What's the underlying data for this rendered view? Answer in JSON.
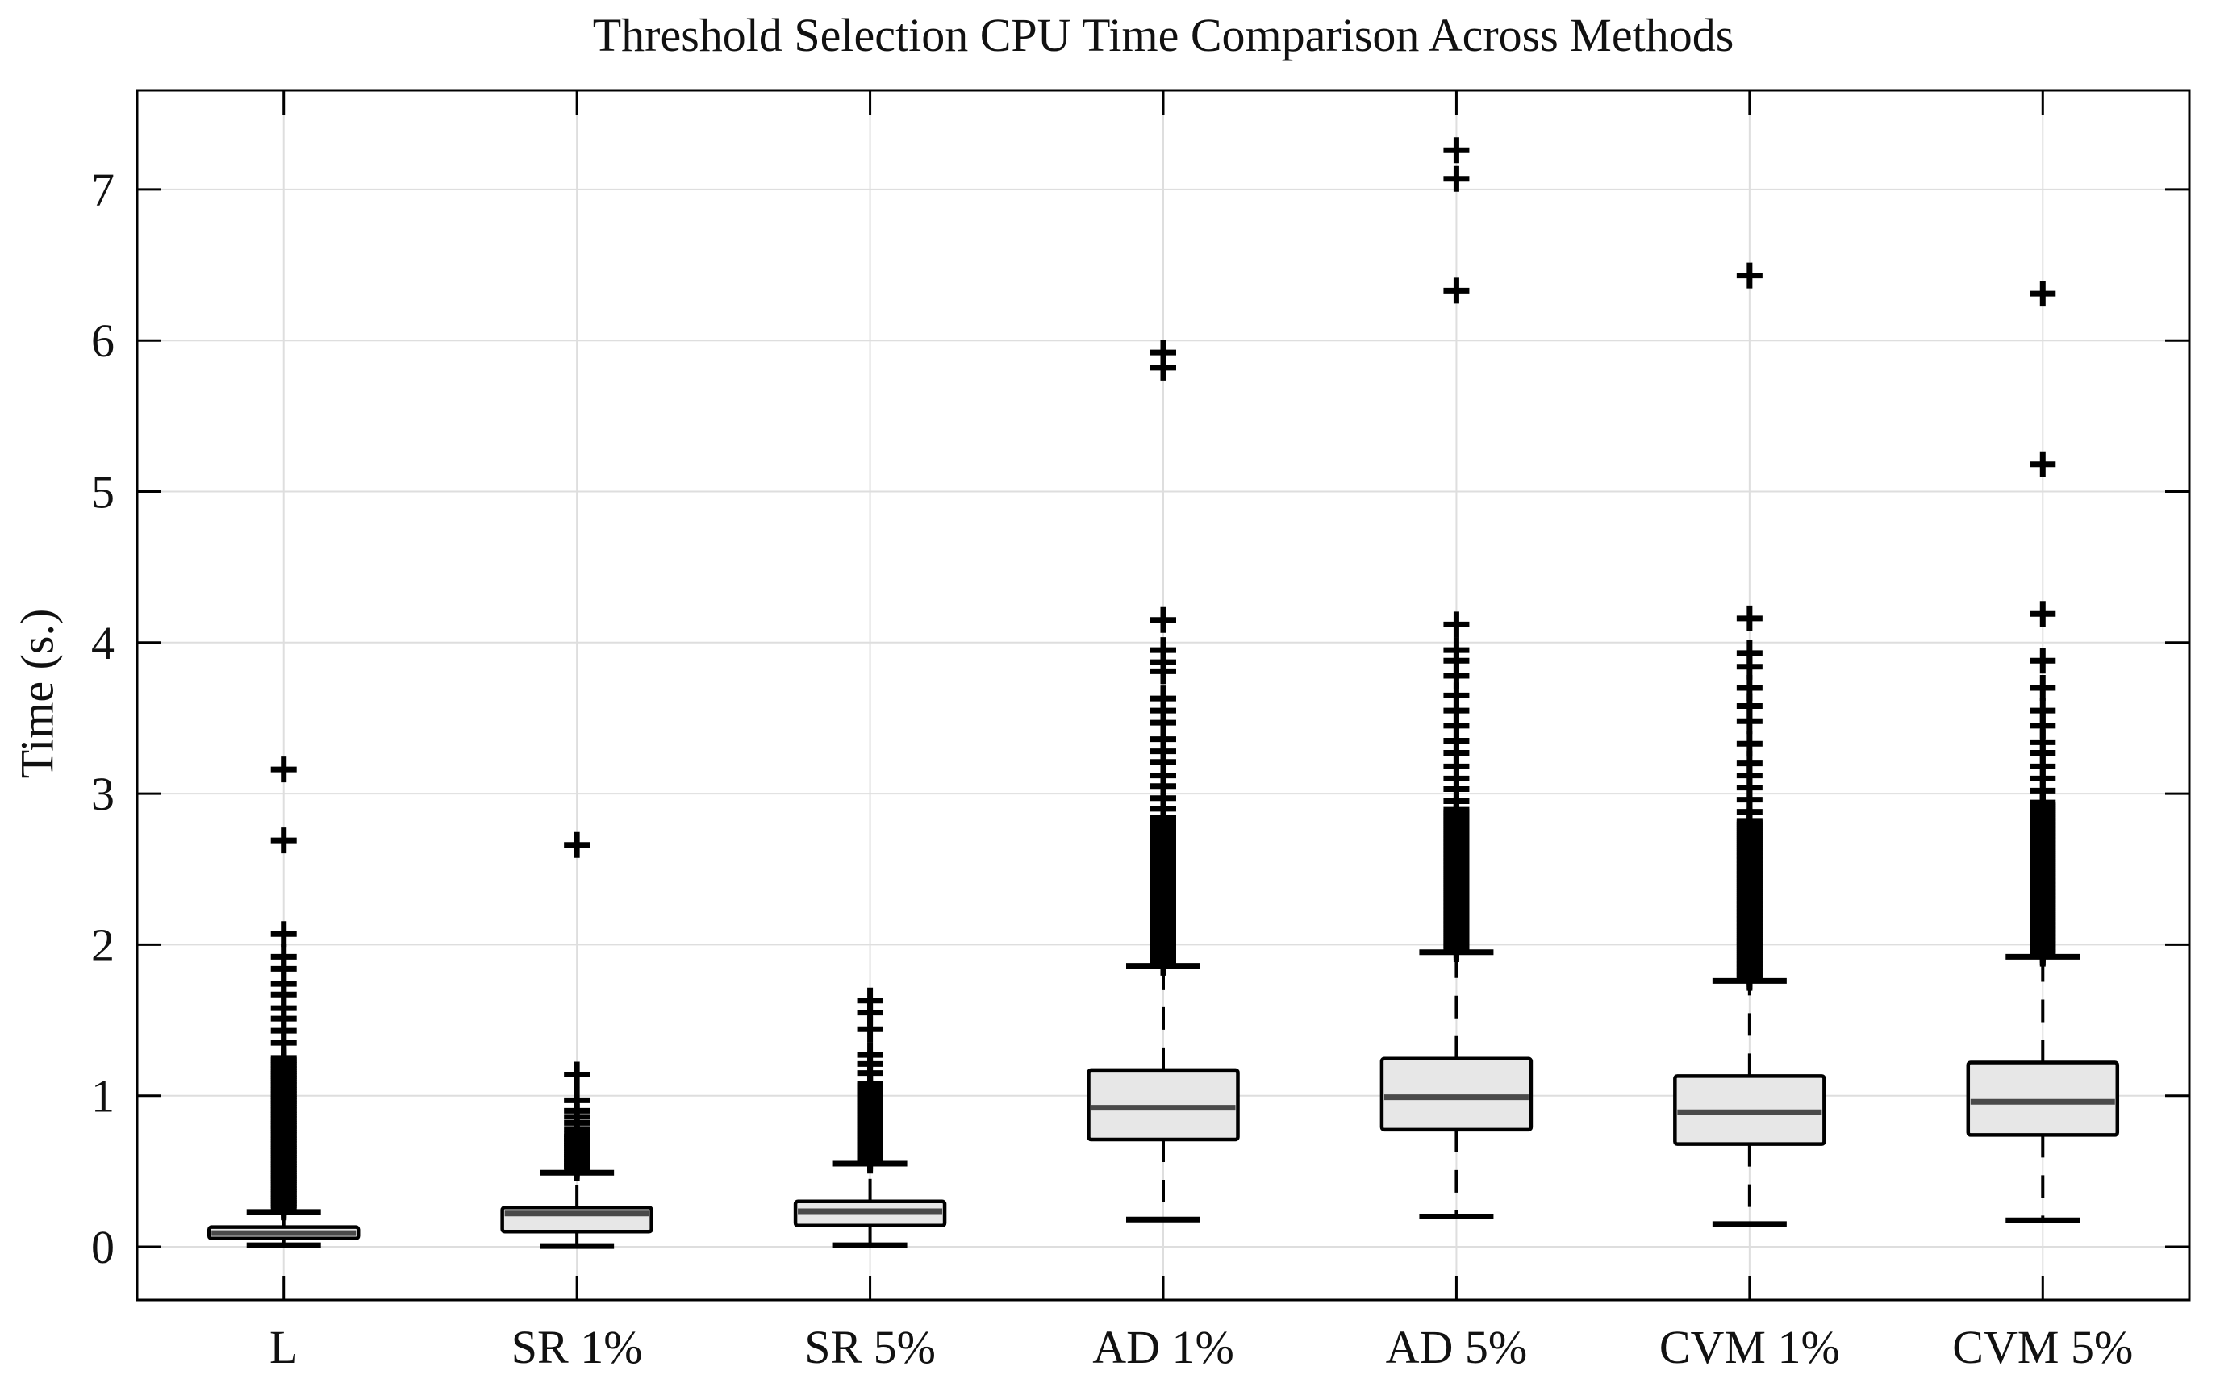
{
  "chart_data": {
    "type": "boxplot",
    "title": "Threshold Selection CPU Time Comparison Across Methods",
    "ylabel": "Time (s.)",
    "categories": [
      "L",
      "SR 1%",
      "SR 5%",
      "AD 1%",
      "AD 5%",
      "CVM 1%",
      "CVM 5%"
    ],
    "yticks": [
      0,
      1,
      2,
      3,
      4,
      5,
      6,
      7
    ],
    "ylim": [
      -0.36,
      7.66
    ],
    "grid": true,
    "legend": "none",
    "series": [
      {
        "name": "L",
        "whislo": 0.01,
        "q1": 0.055,
        "med": 0.09,
        "q3": 0.13,
        "whishi": 0.23,
        "outlier_band": {
          "from": 0.26,
          "to": 1.25,
          "step": 0.015
        },
        "outliers": [
          1.35,
          1.43,
          1.51,
          1.58,
          1.67,
          1.74,
          1.84,
          1.92,
          2.07,
          2.69,
          3.16
        ]
      },
      {
        "name": "SR 1%",
        "whislo": 0.005,
        "q1": 0.1,
        "med": 0.22,
        "q3": 0.26,
        "whishi": 0.49,
        "outlier_band": {
          "from": 0.52,
          "to": 0.75,
          "step": 0.015
        },
        "outliers": [
          0.78,
          0.82,
          0.86,
          0.9,
          0.97,
          1.14,
          2.66
        ]
      },
      {
        "name": "SR 5%",
        "whislo": 0.01,
        "q1": 0.14,
        "med": 0.235,
        "q3": 0.3,
        "whishi": 0.55,
        "outlier_band": {
          "from": 0.57,
          "to": 1.08,
          "step": 0.015
        },
        "outliers": [
          1.15,
          1.21,
          1.27,
          1.44,
          1.55,
          1.63
        ]
      },
      {
        "name": "AD 1%",
        "whislo": 0.18,
        "q1": 0.71,
        "med": 0.92,
        "q3": 1.17,
        "whishi": 1.86,
        "outlier_band": {
          "from": 1.88,
          "to": 2.85,
          "step": 0.013
        },
        "outliers": [
          2.9,
          2.97,
          3.05,
          3.12,
          3.21,
          3.28,
          3.36,
          3.47,
          3.55,
          3.63,
          3.81,
          3.87,
          3.95,
          4.15,
          5.82,
          5.92
        ]
      },
      {
        "name": "AD 5%",
        "whislo": 0.2,
        "q1": 0.775,
        "med": 0.99,
        "q3": 1.245,
        "whishi": 1.95,
        "outlier_band": {
          "from": 1.97,
          "to": 2.9,
          "step": 0.013
        },
        "outliers": [
          2.95,
          3.03,
          3.1,
          3.18,
          3.27,
          3.35,
          3.45,
          3.55,
          3.65,
          3.78,
          3.88,
          3.95,
          4.12,
          6.33,
          7.07,
          7.26
        ]
      },
      {
        "name": "CVM 1%",
        "whislo": 0.15,
        "q1": 0.68,
        "med": 0.89,
        "q3": 1.13,
        "whishi": 1.76,
        "outlier_band": {
          "from": 1.78,
          "to": 2.82,
          "step": 0.013
        },
        "outliers": [
          2.88,
          2.96,
          3.04,
          3.12,
          3.2,
          3.33,
          3.48,
          3.58,
          3.7,
          3.84,
          3.93,
          4.16,
          6.43
        ]
      },
      {
        "name": "CVM 5%",
        "whislo": 0.175,
        "q1": 0.74,
        "med": 0.96,
        "q3": 1.22,
        "whishi": 1.92,
        "outlier_band": {
          "from": 1.94,
          "to": 2.95,
          "step": 0.013
        },
        "outliers": [
          3.02,
          3.1,
          3.18,
          3.27,
          3.34,
          3.45,
          3.55,
          3.7,
          3.88,
          4.19,
          5.18,
          6.31
        ]
      }
    ]
  },
  "colors": {
    "background": "#ffffff",
    "axis": "#000000",
    "grid": "#dedede",
    "box_fill": "#e7e7e7",
    "box_stroke": "#000000",
    "median": "#4a4a4a",
    "whisker": "#000000",
    "cap": "#000000",
    "outlier": "#000000",
    "text": "#111111"
  }
}
